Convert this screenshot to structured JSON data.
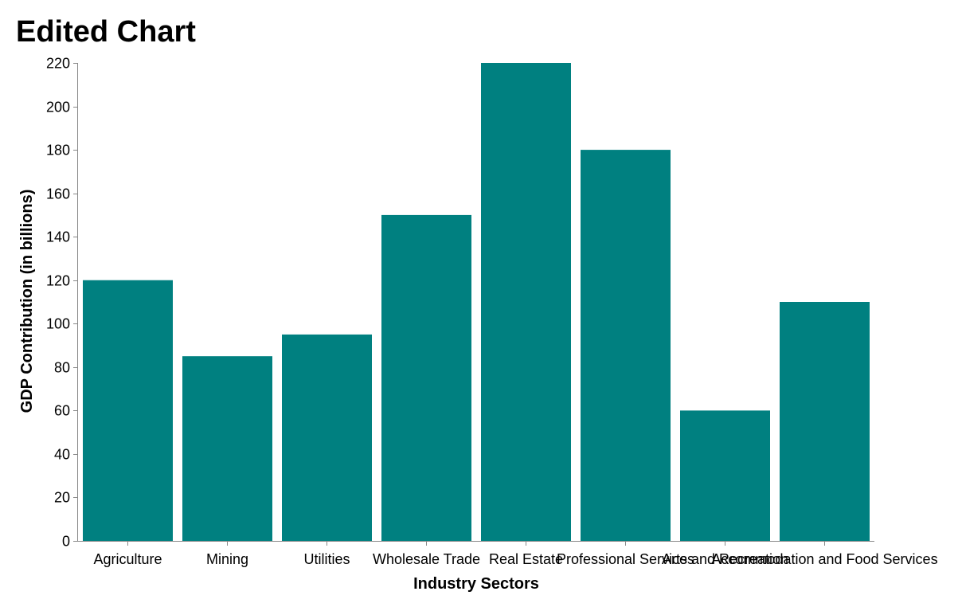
{
  "chart_data": {
    "type": "bar",
    "title": "Edited Chart",
    "xlabel": "Industry Sectors",
    "ylabel": "GDP Contribution (in billions)",
    "categories": [
      "Agriculture",
      "Mining",
      "Utilities",
      "Wholesale Trade",
      "Real Estate",
      "Professional Services",
      "Arts and Recreation",
      "Accommodation and Food Services"
    ],
    "values": [
      120,
      85,
      95,
      150,
      220,
      180,
      60,
      110
    ],
    "ylim": [
      0,
      220
    ],
    "yticks": [
      0,
      20,
      40,
      60,
      80,
      100,
      120,
      140,
      160,
      180,
      200,
      220
    ],
    "grid": false,
    "bar_color": "#008080"
  }
}
